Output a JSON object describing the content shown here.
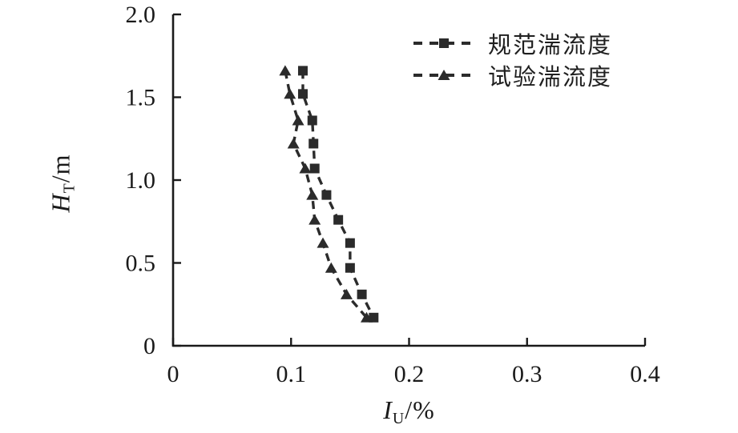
{
  "chart_data": {
    "type": "line",
    "title": "",
    "xlabel": "I_U/%",
    "ylabel": "H_T/m",
    "xlabel_parts": {
      "symbol": "I",
      "subscript": "U",
      "unit": "/%"
    },
    "ylabel_parts": {
      "symbol": "H",
      "subscript": "T",
      "unit": "/m"
    },
    "xlim": [
      0,
      0.4
    ],
    "ylim": [
      0,
      2.0
    ],
    "x_ticks": {
      "values": [
        0,
        0.1,
        0.2,
        0.3,
        0.4
      ],
      "labels": [
        "0",
        "0.1",
        "0.2",
        "0.3",
        "0.4"
      ]
    },
    "y_ticks": {
      "values": [
        0,
        0.5,
        1.0,
        1.5,
        2.0
      ],
      "labels": [
        "0",
        "0.5",
        "1.0",
        "1.5",
        "2.0"
      ]
    },
    "grid": false,
    "legend": {
      "position": "top-right-inside"
    },
    "heights_m": [
      1.66,
      1.52,
      1.36,
      1.22,
      1.07,
      0.91,
      0.76,
      0.62,
      0.47,
      0.31,
      0.17
    ],
    "series": [
      {
        "name": "规范湍流度",
        "marker": "square",
        "line_style": "dashed",
        "turbulence_values": [
          0.11,
          0.11,
          0.118,
          0.119,
          0.12,
          0.13,
          0.14,
          0.15,
          0.15,
          0.16,
          0.17
        ]
      },
      {
        "name": "试验湍流度",
        "marker": "triangle",
        "line_style": "dashed",
        "turbulence_values": [
          0.095,
          0.099,
          0.106,
          0.102,
          0.112,
          0.118,
          0.12,
          0.127,
          0.134,
          0.147,
          0.164
        ]
      }
    ],
    "colors": {
      "axis": "#1a1a1a",
      "text": "#1a1a1a",
      "series": "#2b2b2b",
      "background": "#ffffff"
    }
  }
}
